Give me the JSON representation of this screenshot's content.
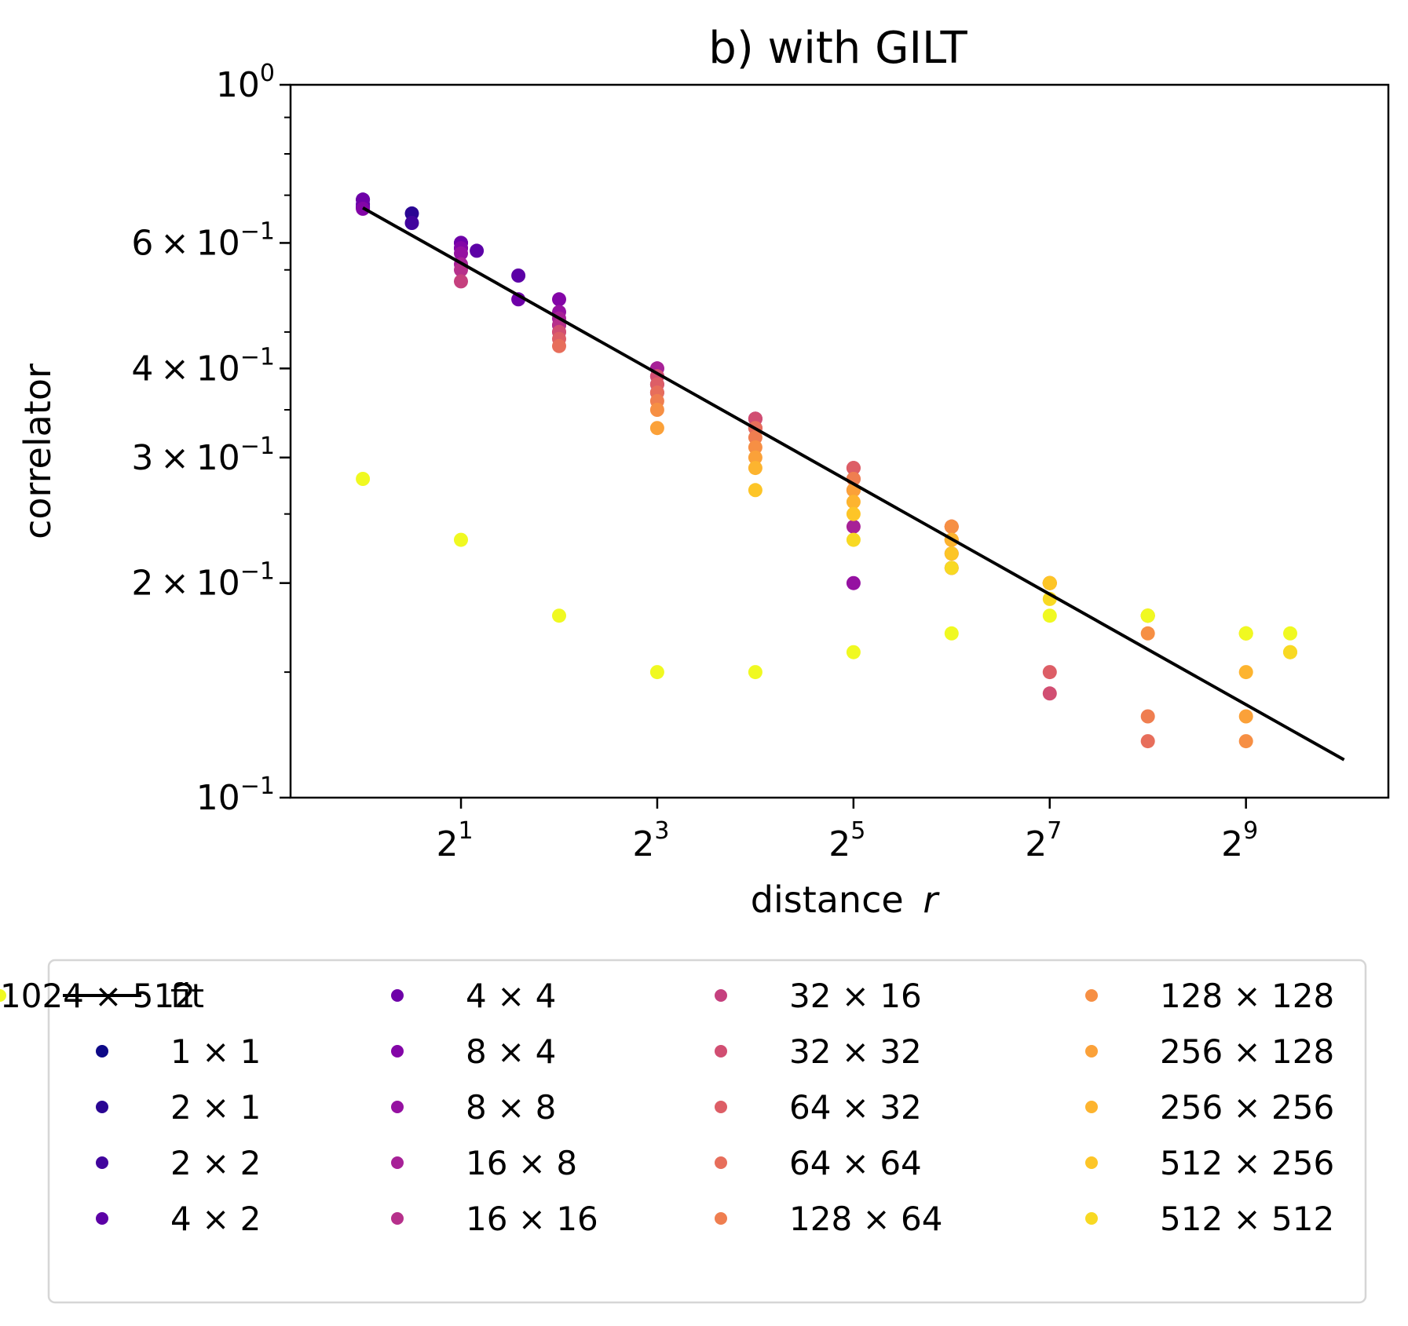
{
  "chart_data": {
    "type": "scatter",
    "title": "b) with GILT",
    "xlabel": "distance",
    "xlabel_var": "r",
    "ylabel": "correlator",
    "x_scale": "log2",
    "y_scale": "log10",
    "xlim": [
      0.6,
      1400
    ],
    "ylim": [
      0.1,
      1.0
    ],
    "grid": false,
    "x_ticks": [
      {
        "value": 2,
        "base": "2",
        "exp": "1"
      },
      {
        "value": 8,
        "base": "2",
        "exp": "3"
      },
      {
        "value": 32,
        "base": "2",
        "exp": "5"
      },
      {
        "value": 128,
        "base": "2",
        "exp": "7"
      },
      {
        "value": 512,
        "base": "2",
        "exp": "9"
      }
    ],
    "y_ticks": [
      {
        "value": 1.0,
        "mant": "",
        "base": "10",
        "exp": "0"
      },
      {
        "value": 0.6,
        "mant": "6 × ",
        "base": "10",
        "exp": "−1"
      },
      {
        "value": 0.4,
        "mant": "4 × ",
        "base": "10",
        "exp": "−1"
      },
      {
        "value": 0.3,
        "mant": "3 × ",
        "base": "10",
        "exp": "−1"
      },
      {
        "value": 0.2,
        "mant": "2 × ",
        "base": "10",
        "exp": "−1"
      },
      {
        "value": 0.1,
        "mant": "",
        "base": "10",
        "exp": "−1"
      }
    ],
    "y_minor_ticks": [
      0.7,
      0.8,
      0.9
    ],
    "fit": {
      "name": "fit",
      "color": "#000000",
      "x": [
        1,
        1024
      ],
      "y": [
        0.672,
        0.113
      ]
    },
    "legend_position": "below plot, 4 columns",
    "series": [
      {
        "name": "1 × 1",
        "color": "#0d0887",
        "x": [
          1
        ],
        "y": [
          0.69
        ]
      },
      {
        "name": "2 × 1",
        "color": "#2a0593",
        "x": [
          1,
          1.414
        ],
        "y": [
          0.672,
          0.66
        ]
      },
      {
        "name": "2 × 2",
        "color": "#41049d",
        "x": [
          1,
          1.414,
          2
        ],
        "y": [
          0.675,
          0.64,
          0.59
        ]
      },
      {
        "name": "4 × 2",
        "color": "#5c01a6",
        "x": [
          1,
          2,
          2.236,
          3
        ],
        "y": [
          0.68,
          0.6,
          0.585,
          0.54
        ]
      },
      {
        "name": "4 × 4",
        "color": "#6e00a8",
        "x": [
          1,
          2,
          3,
          4,
          8
        ],
        "y": [
          0.69,
          0.6,
          0.5,
          0.46,
          0.38
        ]
      },
      {
        "name": "8 × 4",
        "color": "#8305a7",
        "x": [
          1,
          2,
          4,
          8,
          16
        ],
        "y": [
          0.67,
          0.59,
          0.5,
          0.37,
          0.33
        ]
      },
      {
        "name": "8 × 8",
        "color": "#9511a1",
        "x": [
          2,
          4,
          8,
          16,
          32
        ],
        "y": [
          0.58,
          0.48,
          0.4,
          0.33,
          0.2
        ]
      },
      {
        "name": "16 × 8",
        "color": "#a72197",
        "x": [
          2,
          4,
          8,
          16,
          32
        ],
        "y": [
          0.56,
          0.47,
          0.4,
          0.34,
          0.24
        ]
      },
      {
        "name": "16 × 16",
        "color": "#b6308b",
        "x": [
          2,
          4,
          8,
          16,
          32,
          64
        ],
        "y": [
          0.55,
          0.46,
          0.39,
          0.34,
          0.27,
          0.21
        ]
      },
      {
        "name": "32 × 16",
        "color": "#c5407e",
        "x": [
          2,
          4,
          8,
          16,
          32,
          64
        ],
        "y": [
          0.53,
          0.45,
          0.39,
          0.34,
          0.28,
          0.22
        ]
      },
      {
        "name": "32 × 32",
        "color": "#d14e72",
        "x": [
          4,
          8,
          16,
          32,
          64,
          128
        ],
        "y": [
          0.45,
          0.39,
          0.34,
          0.29,
          0.23,
          0.14
        ]
      },
      {
        "name": "64 × 32",
        "color": "#dd5e66",
        "x": [
          4,
          8,
          16,
          32,
          64,
          128
        ],
        "y": [
          0.44,
          0.38,
          0.33,
          0.29,
          0.24,
          0.15
        ]
      },
      {
        "name": "64 × 64",
        "color": "#e76e5b",
        "x": [
          4,
          8,
          16,
          32,
          64,
          128,
          256
        ],
        "y": [
          0.43,
          0.37,
          0.33,
          0.28,
          0.24,
          0.2,
          0.12
        ]
      },
      {
        "name": "128 × 64",
        "color": "#ef7e50",
        "x": [
          8,
          16,
          32,
          64,
          128,
          256
        ],
        "y": [
          0.36,
          0.32,
          0.28,
          0.24,
          0.2,
          0.13
        ]
      },
      {
        "name": "128 × 128",
        "color": "#f68f44",
        "x": [
          8,
          16,
          32,
          64,
          128,
          256,
          512
        ],
        "y": [
          0.35,
          0.31,
          0.27,
          0.24,
          0.2,
          0.17,
          0.12
        ]
      },
      {
        "name": "256 × 128",
        "color": "#fba139",
        "x": [
          8,
          16,
          32,
          64,
          128,
          256,
          512
        ],
        "y": [
          0.33,
          0.3,
          0.27,
          0.23,
          0.2,
          0.18,
          0.13
        ]
      },
      {
        "name": "256 × 256",
        "color": "#fdb42f",
        "x": [
          16,
          32,
          64,
          128,
          256,
          512
        ],
        "y": [
          0.29,
          0.26,
          0.23,
          0.2,
          0.18,
          0.15
        ]
      },
      {
        "name": "512 × 256",
        "color": "#fdc527",
        "x": [
          16,
          32,
          64,
          128,
          256,
          512,
          700
        ],
        "y": [
          0.27,
          0.25,
          0.22,
          0.2,
          0.18,
          0.17,
          0.16
        ]
      },
      {
        "name": "512 × 512",
        "color": "#f8d923",
        "x": [
          32,
          64,
          128,
          256,
          512,
          700
        ],
        "y": [
          0.23,
          0.21,
          0.19,
          0.18,
          0.17,
          0.16
        ]
      },
      {
        "name": "1024 × 512",
        "color": "#f0f921",
        "x": [
          1,
          2,
          4,
          8,
          16,
          32,
          64,
          128,
          256,
          512,
          700
        ],
        "y": [
          0.28,
          0.23,
          0.18,
          0.15,
          0.15,
          0.16,
          0.17,
          0.18,
          0.18,
          0.17,
          0.17
        ]
      }
    ]
  }
}
